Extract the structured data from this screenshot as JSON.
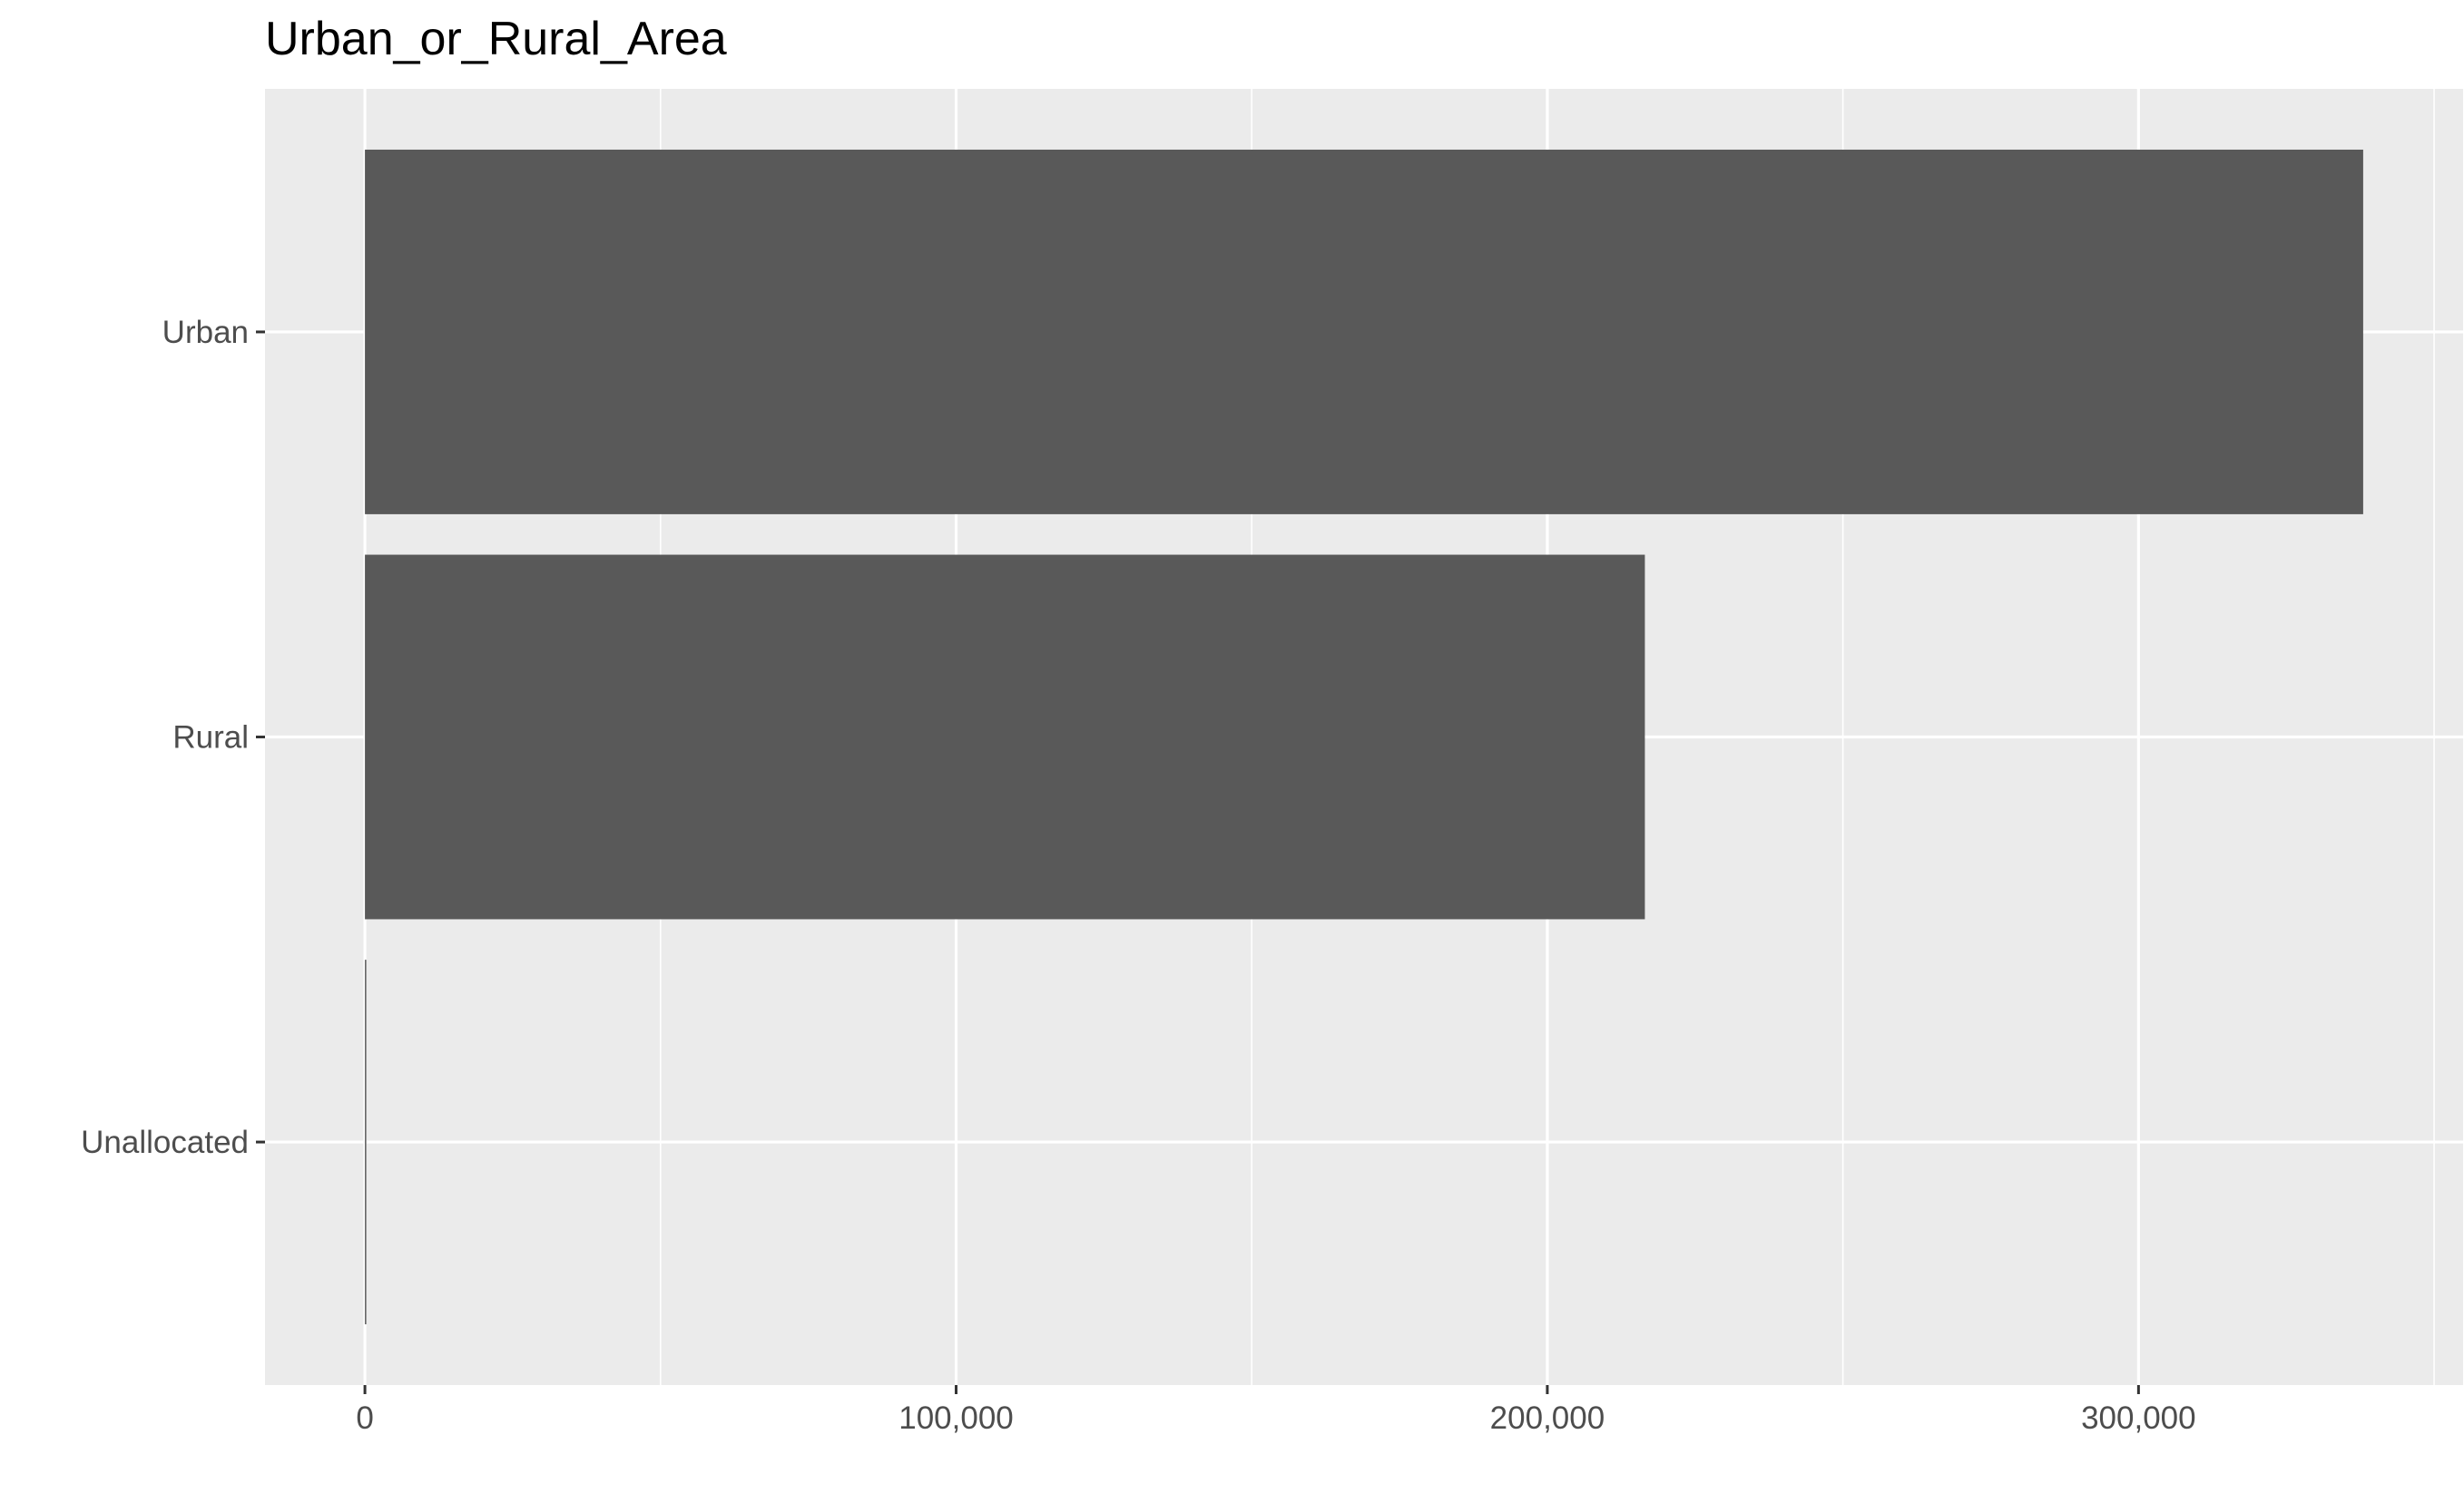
{
  "chart_data": {
    "type": "bar",
    "orientation": "horizontal",
    "title": "Urban_or_Rural_Area",
    "xlabel": "",
    "ylabel": "",
    "categories": [
      "Urban",
      "Rural",
      "Unallocated"
    ],
    "values": [
      338000,
      216500,
      50
    ],
    "x_ticks": [
      0,
      100000,
      200000,
      300000
    ],
    "x_tick_labels": [
      "0",
      "100,000",
      "200,000",
      "300,000"
    ],
    "xlim": [
      -16900,
      354900
    ],
    "grid": true,
    "legend": "none",
    "colors": {
      "bar": "#595959",
      "panel": "#ebebeb",
      "grid": "#ffffff",
      "tick_text": "#4d4d4d",
      "title_text": "#000000",
      "tick_mark": "#333333"
    }
  }
}
